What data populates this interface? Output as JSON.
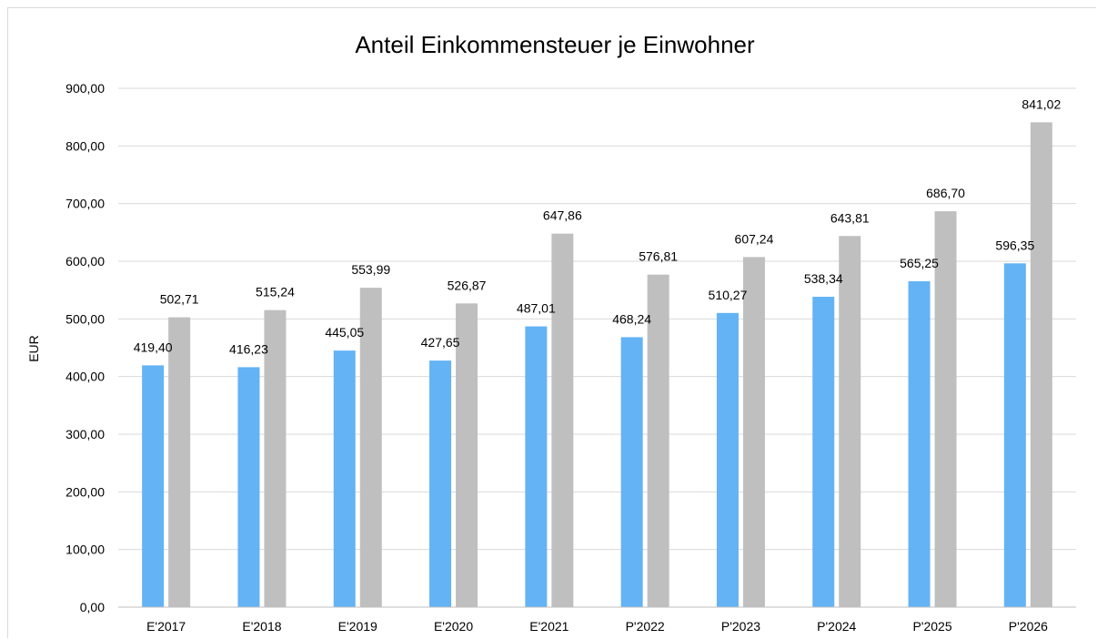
{
  "chart_data": {
    "type": "bar",
    "title": "Anteil Einkommensteuer je Einwohner",
    "ylabel": "EUR",
    "xlabel": "",
    "ylim": [
      0,
      900
    ],
    "ytick_step": 100,
    "ytick_labels": [
      "0,00",
      "100,00",
      "200,00",
      "300,00",
      "400,00",
      "500,00",
      "600,00",
      "700,00",
      "800,00",
      "900,00"
    ],
    "grid": true,
    "legend": "none",
    "categories": [
      "E'2017",
      "E'2018",
      "E'2019",
      "E'2020",
      "E'2021",
      "P'2022",
      "P'2023",
      "P'2024",
      "P'2025",
      "P'2026"
    ],
    "series": [
      {
        "color": "#63b3f5",
        "values": [
          419.4,
          416.23,
          445.05,
          427.65,
          487.01,
          468.24,
          510.27,
          538.34,
          565.25,
          596.35
        ],
        "labels": [
          "419,40",
          "416,23",
          "445,05",
          "427,65",
          "487,01",
          "468,24",
          "510,27",
          "538,34",
          "565,25",
          "596,35"
        ]
      },
      {
        "color": "#bfbfbf",
        "values": [
          502.71,
          515.24,
          553.99,
          526.87,
          647.86,
          576.81,
          607.24,
          643.81,
          686.7,
          841.02
        ],
        "labels": [
          "502,71",
          "515,24",
          "553,99",
          "526,87",
          "647,86",
          "576,81",
          "607,24",
          "643,81",
          "686,70",
          "841,02"
        ]
      }
    ],
    "colors": {
      "gridline": "#d9d9d9",
      "axis": "#bfbfbf"
    }
  }
}
